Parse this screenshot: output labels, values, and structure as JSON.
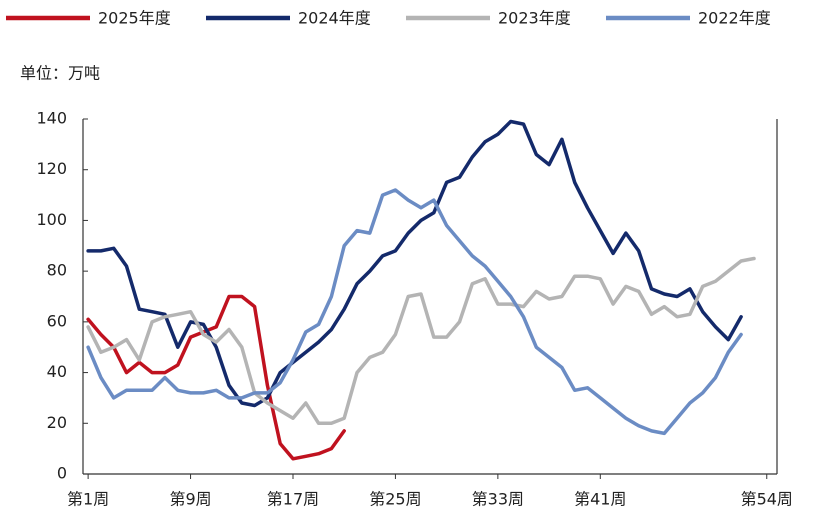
{
  "chart_data": {
    "type": "line",
    "unit_label": "单位：万吨",
    "x": [
      1,
      2,
      3,
      4,
      5,
      6,
      7,
      8,
      9,
      10,
      11,
      12,
      13,
      14,
      15,
      16,
      17,
      18,
      19,
      20,
      21,
      22,
      23,
      24,
      25,
      26,
      27,
      28,
      29,
      30,
      31,
      32,
      33,
      34,
      35,
      36,
      37,
      38,
      39,
      40,
      41,
      42,
      43,
      44,
      45,
      46,
      47,
      48,
      49,
      50,
      51,
      52,
      53
    ],
    "xlim": [
      0.6,
      54.8
    ],
    "xticks": [
      {
        "value": 1,
        "label": "第1周"
      },
      {
        "value": 9,
        "label": "第9周"
      },
      {
        "value": 17,
        "label": "第17周"
      },
      {
        "value": 25,
        "label": "第25周"
      },
      {
        "value": 33,
        "label": "第33周"
      },
      {
        "value": 41,
        "label": "第41周"
      },
      {
        "value": 54,
        "label": "第54周"
      }
    ],
    "ylim": [
      0,
      140
    ],
    "yticks": [
      0,
      20,
      40,
      60,
      80,
      100,
      120,
      140
    ],
    "grid": false,
    "legend": "top",
    "series": [
      {
        "name": "2025年度",
        "color": "#c0121f",
        "values": [
          61,
          55,
          50,
          40,
          44,
          40,
          40,
          43,
          54,
          56,
          58,
          70,
          70,
          66,
          35,
          12,
          6,
          7,
          8,
          10,
          17,
          null,
          null,
          null,
          null,
          null,
          null,
          null,
          null,
          null,
          null,
          null,
          null,
          null,
          null,
          null,
          null,
          null,
          null,
          null,
          null,
          null,
          null,
          null,
          null,
          null,
          null,
          null,
          null,
          null,
          null,
          null,
          null
        ]
      },
      {
        "name": "2024年度",
        "color": "#142a6b",
        "values": [
          88,
          88,
          89,
          82,
          65,
          64,
          63,
          50,
          60,
          59,
          50,
          35,
          28,
          27,
          30,
          40,
          44,
          48,
          52,
          57,
          65,
          75,
          80,
          86,
          88,
          95,
          100,
          103,
          115,
          117,
          125,
          131,
          134,
          139,
          138,
          126,
          122,
          132,
          115,
          105,
          96,
          87,
          95,
          88,
          73,
          71,
          70,
          73,
          64,
          58,
          53,
          62,
          null
        ]
      },
      {
        "name": "2023年度",
        "color": "#b4b4b4",
        "values": [
          58,
          48,
          50,
          53,
          45,
          60,
          62,
          63,
          64,
          55,
          52,
          57,
          50,
          32,
          28,
          25,
          22,
          28,
          20,
          20,
          22,
          40,
          46,
          48,
          55,
          70,
          71,
          54,
          54,
          60,
          75,
          77,
          67,
          67,
          66,
          72,
          69,
          70,
          78,
          78,
          77,
          67,
          74,
          72,
          63,
          66,
          62,
          63,
          74,
          76,
          80,
          84,
          85
        ]
      },
      {
        "name": "2022年度",
        "color": "#6b8cc4",
        "values": [
          50,
          38,
          30,
          33,
          33,
          33,
          38,
          33,
          32,
          32,
          33,
          30,
          30,
          32,
          32,
          36,
          45,
          56,
          59,
          70,
          90,
          96,
          95,
          110,
          112,
          108,
          105,
          108,
          98,
          92,
          86,
          82,
          76,
          70,
          62,
          50,
          46,
          42,
          33,
          34,
          30,
          26,
          22,
          19,
          17,
          16,
          22,
          28,
          32,
          38,
          48,
          55,
          null
        ]
      }
    ]
  }
}
